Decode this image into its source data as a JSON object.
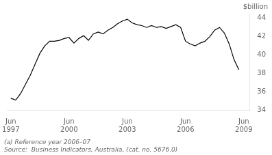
{
  "chart_data": {
    "type": "line",
    "ylabel": "$billion",
    "annotations": [
      "(a) Reference year 2006–07",
      "Source:  Business Indicators, Australia, (cat. no. 5676.0)"
    ],
    "color": "#000000",
    "grid": false,
    "xlim": [
      1997.3,
      2009.8
    ],
    "xticks": [
      {
        "value": 1997.5,
        "label": "Jun\n1997"
      },
      {
        "value": 2000.5,
        "label": "Jun\n2000"
      },
      {
        "value": 2003.5,
        "label": "Jun\n2003"
      },
      {
        "value": 2006.5,
        "label": "Jun\n2006"
      },
      {
        "value": 2009.5,
        "label": "Jun\n2009"
      }
    ],
    "ylim": [
      34,
      44.5
    ],
    "yticks": [
      34,
      36,
      38,
      40,
      42,
      44
    ],
    "x": [
      1997.5,
      1997.75,
      1998.0,
      1998.25,
      1998.5,
      1998.75,
      1999.0,
      1999.25,
      1999.5,
      1999.75,
      2000.0,
      2000.25,
      2000.5,
      2000.75,
      2001.0,
      2001.25,
      2001.5,
      2001.75,
      2002.0,
      2002.25,
      2002.5,
      2002.75,
      2003.0,
      2003.25,
      2003.5,
      2003.75,
      2004.0,
      2004.25,
      2004.5,
      2004.75,
      2005.0,
      2005.25,
      2005.5,
      2005.75,
      2006.0,
      2006.25,
      2006.5,
      2006.75,
      2007.0,
      2007.25,
      2007.5,
      2007.75,
      2008.0,
      2008.25,
      2008.5,
      2008.75,
      2009.0,
      2009.25
    ],
    "values": [
      35.3,
      35.1,
      35.8,
      36.8,
      37.8,
      39.0,
      40.2,
      41.0,
      41.5,
      41.5,
      41.6,
      41.8,
      41.9,
      41.3,
      41.8,
      42.1,
      41.6,
      42.3,
      42.5,
      42.3,
      42.7,
      43.0,
      43.4,
      43.7,
      43.9,
      43.5,
      43.3,
      43.2,
      43.0,
      43.2,
      43.0,
      43.1,
      42.9,
      43.1,
      43.3,
      43.0,
      41.5,
      41.2,
      41.0,
      41.3,
      41.5,
      42.0,
      42.7,
      43.0,
      42.4,
      41.2,
      39.5,
      38.4
    ]
  }
}
